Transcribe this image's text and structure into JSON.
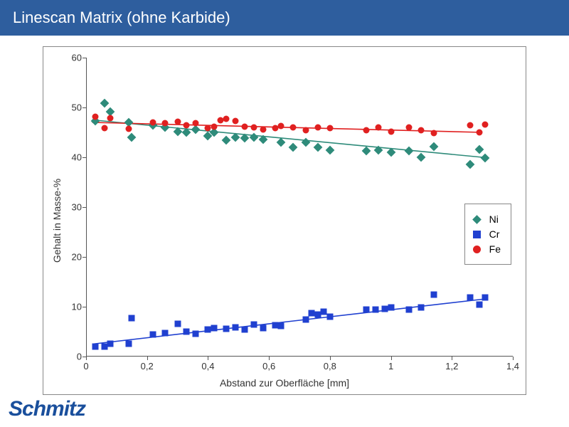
{
  "header": {
    "title": "Linescan Matrix (ohne Karbide)",
    "bg_color": "#2e5e9e"
  },
  "logo": {
    "text": "Schmitz",
    "color": "#1a4f9c"
  },
  "chart": {
    "type": "scatter",
    "background_color": "#ffffff",
    "border_color": "#888888",
    "xlabel": "Abstand zur Oberfläche [mm]",
    "ylabel": "Gehalt in Masse-%",
    "label_fontsize": 14,
    "label_color": "#333333",
    "tick_fontsize": 13,
    "tick_color": "#333333",
    "xlim": [
      0,
      1.4
    ],
    "ylim": [
      0,
      60
    ],
    "xticks": [
      0,
      0.2,
      0.4,
      0.6,
      0.8,
      1.0,
      1.2,
      1.4
    ],
    "xtick_labels": [
      "0",
      "0,2",
      "0,4",
      "0,6",
      "0,8",
      "1",
      "1,2",
      "1,4"
    ],
    "yticks": [
      0,
      10,
      20,
      30,
      40,
      50,
      60
    ],
    "ytick_labels": [
      "0",
      "10",
      "20",
      "30",
      "40",
      "50",
      "60"
    ],
    "series": [
      {
        "name": "Ni",
        "label": "Ni",
        "marker": "diamond",
        "marker_size": 9,
        "color": "#2e8b7a",
        "trend": {
          "x1": 0.02,
          "y1": 47.5,
          "x2": 1.3,
          "y2": 40.0,
          "width": 1.6
        },
        "points": [
          [
            0.03,
            47.3
          ],
          [
            0.06,
            50.8
          ],
          [
            0.08,
            49.1
          ],
          [
            0.14,
            47.0
          ],
          [
            0.15,
            44.0
          ],
          [
            0.22,
            46.5
          ],
          [
            0.26,
            46.0
          ],
          [
            0.3,
            45.2
          ],
          [
            0.33,
            45.0
          ],
          [
            0.36,
            45.6
          ],
          [
            0.4,
            44.3
          ],
          [
            0.42,
            45.0
          ],
          [
            0.46,
            43.5
          ],
          [
            0.49,
            44.0
          ],
          [
            0.52,
            43.8
          ],
          [
            0.55,
            44.0
          ],
          [
            0.58,
            43.6
          ],
          [
            0.64,
            43.0
          ],
          [
            0.68,
            42.0
          ],
          [
            0.72,
            43.0
          ],
          [
            0.76,
            42.0
          ],
          [
            0.8,
            41.5
          ],
          [
            0.92,
            41.3
          ],
          [
            0.96,
            41.5
          ],
          [
            1.0,
            41.0
          ],
          [
            1.06,
            41.3
          ],
          [
            1.1,
            40.0
          ],
          [
            1.14,
            42.2
          ],
          [
            1.26,
            38.6
          ],
          [
            1.29,
            41.6
          ],
          [
            1.31,
            39.8
          ]
        ]
      },
      {
        "name": "Cr",
        "label": "Cr",
        "marker": "square",
        "marker_size": 9,
        "color": "#2040d0",
        "trend": {
          "x1": 0.02,
          "y1": 2.5,
          "x2": 1.3,
          "y2": 11.5,
          "width": 1.6
        },
        "points": [
          [
            0.03,
            2.0
          ],
          [
            0.06,
            2.0
          ],
          [
            0.08,
            2.6
          ],
          [
            0.14,
            2.6
          ],
          [
            0.15,
            7.7
          ],
          [
            0.22,
            4.5
          ],
          [
            0.26,
            4.7
          ],
          [
            0.3,
            6.6
          ],
          [
            0.33,
            5.0
          ],
          [
            0.36,
            4.6
          ],
          [
            0.4,
            5.4
          ],
          [
            0.42,
            5.7
          ],
          [
            0.46,
            5.6
          ],
          [
            0.49,
            5.8
          ],
          [
            0.52,
            5.4
          ],
          [
            0.55,
            6.5
          ],
          [
            0.58,
            5.7
          ],
          [
            0.62,
            6.3
          ],
          [
            0.64,
            6.1
          ],
          [
            0.72,
            7.4
          ],
          [
            0.74,
            8.7
          ],
          [
            0.76,
            8.4
          ],
          [
            0.78,
            9.0
          ],
          [
            0.8,
            8.0
          ],
          [
            0.92,
            9.5
          ],
          [
            0.95,
            9.5
          ],
          [
            0.98,
            9.6
          ],
          [
            1.0,
            9.8
          ],
          [
            1.06,
            9.5
          ],
          [
            1.1,
            9.8
          ],
          [
            1.14,
            12.5
          ],
          [
            1.26,
            11.8
          ],
          [
            1.29,
            10.4
          ],
          [
            1.31,
            11.9
          ]
        ]
      },
      {
        "name": "Fe",
        "label": "Fe",
        "marker": "circle",
        "marker_size": 9,
        "color": "#e02020",
        "trend": {
          "x1": 0.02,
          "y1": 47.0,
          "x2": 1.3,
          "y2": 45.0,
          "width": 1.6
        },
        "points": [
          [
            0.03,
            48.2
          ],
          [
            0.06,
            45.9
          ],
          [
            0.08,
            47.8
          ],
          [
            0.14,
            45.7
          ],
          [
            0.22,
            47.0
          ],
          [
            0.26,
            46.8
          ],
          [
            0.3,
            47.2
          ],
          [
            0.33,
            46.5
          ],
          [
            0.36,
            46.8
          ],
          [
            0.4,
            45.8
          ],
          [
            0.42,
            46.2
          ],
          [
            0.44,
            47.5
          ],
          [
            0.46,
            47.7
          ],
          [
            0.49,
            47.3
          ],
          [
            0.52,
            46.2
          ],
          [
            0.55,
            46.0
          ],
          [
            0.58,
            45.6
          ],
          [
            0.62,
            45.8
          ],
          [
            0.64,
            46.3
          ],
          [
            0.68,
            46.0
          ],
          [
            0.72,
            45.5
          ],
          [
            0.76,
            46.0
          ],
          [
            0.8,
            45.8
          ],
          [
            0.92,
            45.5
          ],
          [
            0.96,
            46.0
          ],
          [
            1.0,
            45.2
          ],
          [
            1.06,
            46.0
          ],
          [
            1.1,
            45.5
          ],
          [
            1.14,
            44.8
          ],
          [
            1.26,
            46.5
          ],
          [
            1.29,
            45.0
          ],
          [
            1.31,
            46.6
          ]
        ]
      }
    ],
    "legend": {
      "position": "right-middle",
      "border_color": "#888888",
      "fontsize": 14,
      "items": [
        {
          "series": "Ni",
          "label": "Ni"
        },
        {
          "series": "Cr",
          "label": "Cr"
        },
        {
          "series": "Fe",
          "label": "Fe"
        }
      ]
    }
  }
}
